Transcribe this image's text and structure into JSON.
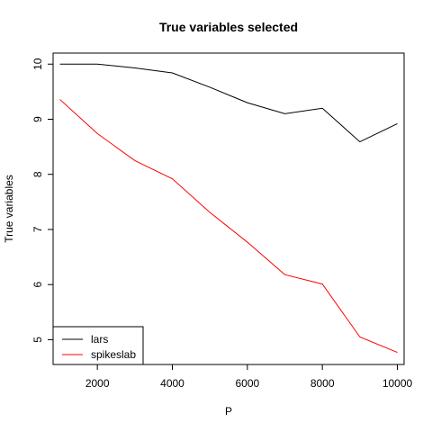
{
  "chart_data": {
    "type": "line",
    "title": "True variables selected",
    "xlabel": "P",
    "ylabel": "True variables",
    "xlim": [
      820,
      10180
    ],
    "ylim": [
      4.55,
      10.2
    ],
    "x": [
      1000,
      2000,
      3000,
      4000,
      5000,
      6000,
      7000,
      8000,
      9000,
      10000
    ],
    "xticks": [
      2000,
      4000,
      6000,
      8000,
      10000
    ],
    "yticks": [
      5,
      6,
      7,
      8,
      9,
      10
    ],
    "grid": false,
    "legend_position": "bottom-left",
    "series": [
      {
        "name": "lars",
        "color": "#000000",
        "values": [
          10.0,
          10.0,
          9.93,
          9.84,
          9.58,
          9.3,
          9.1,
          9.2,
          8.59,
          8.92
        ]
      },
      {
        "name": "spikeslab",
        "color": "#ff0000",
        "values": [
          9.36,
          8.74,
          8.25,
          7.92,
          7.31,
          6.77,
          6.18,
          6.01,
          5.05,
          4.77
        ]
      }
    ]
  }
}
